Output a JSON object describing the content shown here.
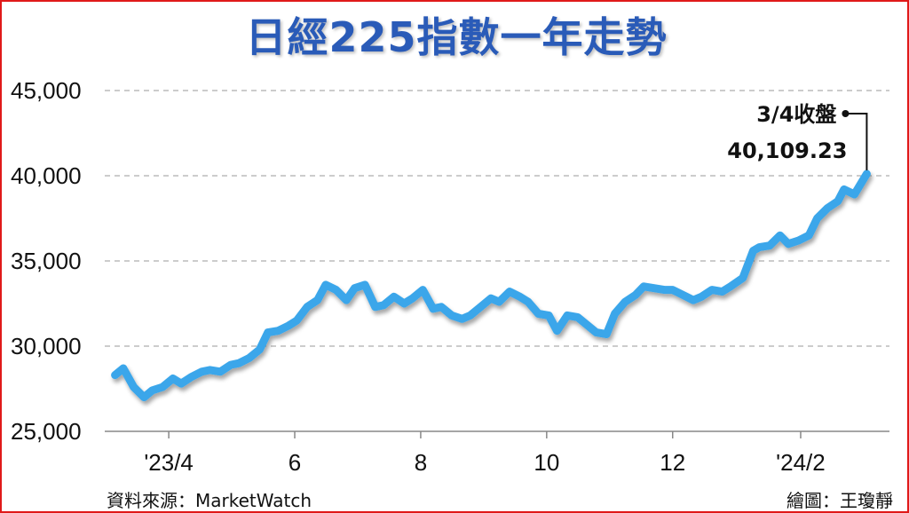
{
  "chart_data": {
    "type": "line",
    "title": "日經225指數一年走勢",
    "xlabel": "",
    "ylabel": "",
    "ylim": [
      25000,
      45000
    ],
    "yticks": [
      25000,
      30000,
      35000,
      40000,
      45000
    ],
    "ytick_labels": [
      "25,000",
      "30,000",
      "35,000",
      "40,000",
      "45,000"
    ],
    "xlim": [
      "2023-03-01",
      "2024-03-15"
    ],
    "xticks": [
      "2023-04-01",
      "2023-06-01",
      "2023-08-01",
      "2023-10-01",
      "2023-12-01",
      "2024-02-01"
    ],
    "xtick_labels": [
      "'23/4",
      "6",
      "8",
      "10",
      "12",
      "'24/2"
    ],
    "grid": "horizontal dashed",
    "line_color": "#3aa6ea",
    "series": [
      {
        "x": [
          "2023-03-06",
          "2023-03-10",
          "2023-03-15",
          "2023-03-20",
          "2023-03-24",
          "2023-03-29",
          "2023-04-03",
          "2023-04-07",
          "2023-04-12",
          "2023-04-17",
          "2023-04-21",
          "2023-04-26",
          "2023-05-01",
          "2023-05-05",
          "2023-05-10",
          "2023-05-15",
          "2023-05-19",
          "2023-05-24",
          "2023-05-29",
          "2023-06-02",
          "2023-06-07",
          "2023-06-12",
          "2023-06-16",
          "2023-06-21",
          "2023-06-26",
          "2023-06-30",
          "2023-07-05",
          "2023-07-10",
          "2023-07-14",
          "2023-07-19",
          "2023-07-24",
          "2023-07-28",
          "2023-08-02",
          "2023-08-07",
          "2023-08-11",
          "2023-08-16",
          "2023-08-21",
          "2023-08-25",
          "2023-08-30",
          "2023-09-04",
          "2023-09-08",
          "2023-09-13",
          "2023-09-18",
          "2023-09-22",
          "2023-09-27",
          "2023-10-02",
          "2023-10-06",
          "2023-10-11",
          "2023-10-16",
          "2023-10-20",
          "2023-10-25",
          "2023-10-30",
          "2023-11-03",
          "2023-11-08",
          "2023-11-13",
          "2023-11-17",
          "2023-11-22",
          "2023-11-27",
          "2023-12-01",
          "2023-12-06",
          "2023-12-11",
          "2023-12-15",
          "2023-12-20",
          "2023-12-25",
          "2023-12-29",
          "2024-01-04",
          "2024-01-09",
          "2024-01-12",
          "2024-01-17",
          "2024-01-22",
          "2024-01-26",
          "2024-01-31",
          "2024-02-05",
          "2024-02-09",
          "2024-02-14",
          "2024-02-19",
          "2024-02-22",
          "2024-02-27",
          "2024-03-01",
          "2024-03-04"
        ],
        "values": [
          28300,
          28700,
          27600,
          27000,
          27400,
          27600,
          28100,
          27800,
          28200,
          28500,
          28600,
          28500,
          28900,
          29000,
          29300,
          29800,
          30800,
          30900,
          31200,
          31500,
          32300,
          32700,
          33600,
          33300,
          32700,
          33400,
          33600,
          32300,
          32400,
          32900,
          32500,
          32800,
          33300,
          32200,
          32300,
          31800,
          31600,
          31800,
          32300,
          32800,
          32600,
          33200,
          32900,
          32600,
          31900,
          31800,
          30900,
          31800,
          31700,
          31300,
          30800,
          30700,
          31900,
          32600,
          33000,
          33500,
          33400,
          33300,
          33300,
          33000,
          32700,
          32900,
          33300,
          33200,
          33500,
          34000,
          35600,
          35800,
          35900,
          36500,
          36000,
          36200,
          36500,
          37500,
          38100,
          38500,
          39200,
          38900,
          39500,
          40109.23
        ]
      }
    ],
    "annotations": [
      {
        "x": "2024-03-04",
        "y": 40109.23,
        "label_line1": "3/4收盤",
        "label_line2": "40,109.23"
      }
    ]
  },
  "footer": {
    "source": "資料來源：MarketWatch",
    "credit": "繪圖：王瓊靜"
  }
}
